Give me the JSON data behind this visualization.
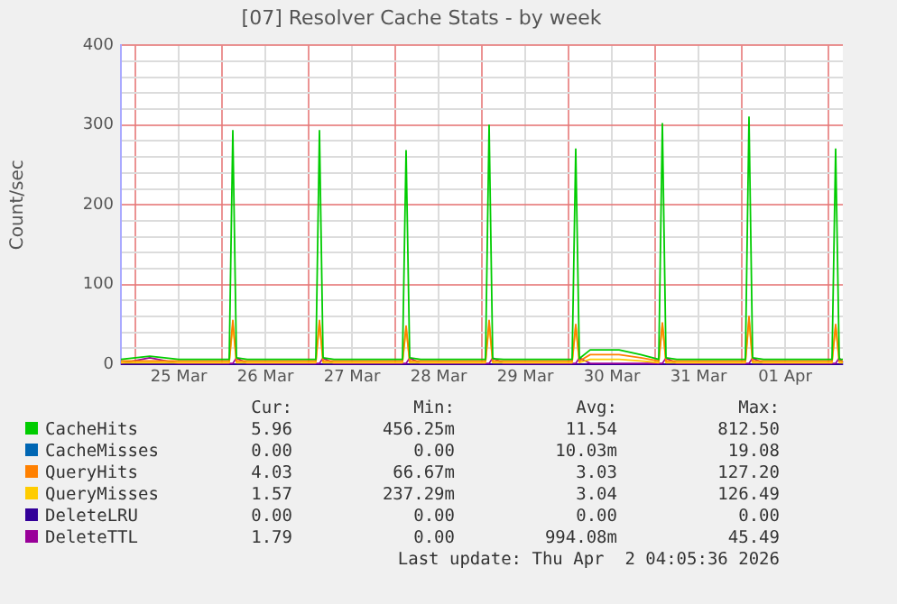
{
  "chart_data": {
    "type": "line",
    "title": "[07] Resolver Cache Stats - by week",
    "ylabel": "Count/sec",
    "x": [
      "2026-03-24T20:00",
      "2026-03-25T04:00",
      "2026-03-25T12:00",
      "2026-03-25T20:00",
      "2026-03-26T02:00",
      "2026-03-26T03:00",
      "2026-03-26T04:00",
      "2026-03-26T07:00",
      "2026-03-26T15:00",
      "2026-03-27T02:00",
      "2026-03-27T03:00",
      "2026-03-27T04:00",
      "2026-03-27T07:00",
      "2026-03-27T15:00",
      "2026-03-28T02:00",
      "2026-03-28T03:00",
      "2026-03-28T04:00",
      "2026-03-28T07:00",
      "2026-03-28T15:00",
      "2026-03-29T01:00",
      "2026-03-29T02:00",
      "2026-03-29T03:00",
      "2026-03-29T06:00",
      "2026-03-29T15:00",
      "2026-03-30T01:00",
      "2026-03-30T02:00",
      "2026-03-30T03:00",
      "2026-03-30T06:00",
      "2026-03-30T14:00",
      "2026-03-30T20:00",
      "2026-03-31T01:00",
      "2026-03-31T02:00",
      "2026-03-31T03:00",
      "2026-03-31T06:00",
      "2026-03-31T15:00",
      "2026-04-01T01:00",
      "2026-04-01T02:00",
      "2026-04-01T03:00",
      "2026-04-01T06:00",
      "2026-04-01T15:00",
      "2026-04-02T01:00",
      "2026-04-02T02:00",
      "2026-04-02T03:00",
      "2026-04-02T04:00"
    ],
    "series": [
      {
        "name": "CacheHits",
        "color": "#00cc00",
        "values": [
          6,
          10,
          6,
          6,
          6,
          293,
          8,
          6,
          6,
          6,
          293,
          8,
          6,
          6,
          6,
          268,
          8,
          6,
          6,
          6,
          300,
          7,
          6,
          6,
          6,
          270,
          7,
          18,
          18,
          12,
          6,
          302,
          8,
          6,
          6,
          6,
          310,
          8,
          6,
          6,
          6,
          270,
          6,
          6
        ]
      },
      {
        "name": "CacheMisses",
        "color": "#0066b3",
        "values": [
          null,
          null,
          null,
          null,
          null,
          null,
          null,
          null,
          null,
          null,
          null,
          null,
          null,
          null,
          null,
          null,
          null,
          null,
          null,
          null,
          null,
          null,
          null,
          null,
          null,
          null,
          null,
          null,
          null,
          null,
          null,
          null,
          null,
          null,
          null,
          null,
          null,
          null,
          null,
          null,
          null,
          null,
          null,
          null
        ]
      },
      {
        "name": "QueryHits",
        "color": "#ff8000",
        "values": [
          4,
          4,
          4,
          4,
          4,
          55,
          4,
          4,
          4,
          4,
          55,
          4,
          4,
          4,
          4,
          48,
          4,
          4,
          4,
          4,
          55,
          4,
          4,
          4,
          4,
          50,
          4,
          12,
          12,
          8,
          4,
          52,
          4,
          4,
          4,
          4,
          60,
          4,
          4,
          4,
          4,
          50,
          4,
          4
        ]
      },
      {
        "name": "QueryMisses",
        "color": "#ffcc00",
        "values": [
          2,
          2,
          2,
          2,
          2,
          50,
          2,
          2,
          2,
          2,
          52,
          2,
          2,
          2,
          2,
          45,
          2,
          2,
          2,
          2,
          50,
          2,
          2,
          2,
          2,
          48,
          2,
          6,
          6,
          4,
          2,
          50,
          2,
          2,
          2,
          2,
          55,
          2,
          2,
          2,
          2,
          48,
          2,
          2
        ]
      },
      {
        "name": "DeleteLRU",
        "color": "#330099",
        "values": [
          0,
          0,
          0,
          0,
          0,
          0,
          0,
          0,
          0,
          0,
          0,
          0,
          0,
          0,
          0,
          0,
          0,
          0,
          0,
          0,
          0,
          0,
          0,
          0,
          0,
          0,
          0,
          0,
          0,
          0,
          0,
          0,
          0,
          0,
          0,
          0,
          0,
          0,
          0,
          0,
          0,
          0,
          0,
          0
        ]
      },
      {
        "name": "DeleteTTL",
        "color": "#990099",
        "values": [
          1,
          8,
          1,
          1,
          1,
          1,
          8,
          1,
          1,
          1,
          1,
          8,
          1,
          1,
          1,
          1,
          8,
          1,
          1,
          1,
          1,
          8,
          1,
          1,
          1,
          1,
          8,
          1,
          1,
          1,
          1,
          1,
          8,
          1,
          1,
          1,
          1,
          8,
          1,
          1,
          1,
          1,
          8,
          2
        ]
      }
    ],
    "xlim": [
      "2026-03-24T20:00",
      "2026-04-02T04:00"
    ],
    "xticks": [
      {
        "value": "2026-03-25T00:00",
        "label": null
      },
      {
        "value": "2026-03-25T12:00",
        "label": "25 Mar"
      },
      {
        "value": "2026-03-26T00:00",
        "label": null
      },
      {
        "value": "2026-03-26T12:00",
        "label": "26 Mar"
      },
      {
        "value": "2026-03-27T00:00",
        "label": null
      },
      {
        "value": "2026-03-27T12:00",
        "label": "27 Mar"
      },
      {
        "value": "2026-03-28T00:00",
        "label": null
      },
      {
        "value": "2026-03-28T12:00",
        "label": "28 Mar"
      },
      {
        "value": "2026-03-29T00:00",
        "label": null
      },
      {
        "value": "2026-03-29T12:00",
        "label": "29 Mar"
      },
      {
        "value": "2026-03-30T00:00",
        "label": null
      },
      {
        "value": "2026-03-30T12:00",
        "label": "30 Mar"
      },
      {
        "value": "2026-03-31T00:00",
        "label": null
      },
      {
        "value": "2026-03-31T12:00",
        "label": "31 Mar"
      },
      {
        "value": "2026-04-01T00:00",
        "label": null
      },
      {
        "value": "2026-04-01T12:00",
        "label": "01 Apr"
      },
      {
        "value": "2026-04-02T00:00",
        "label": null
      }
    ],
    "ylim": [
      0,
      400
    ],
    "yticks": [
      0,
      {
        "value": 20,
        "label": null
      },
      {
        "value": 40,
        "label": null
      },
      {
        "value": 60,
        "label": null
      },
      {
        "value": 80,
        "label": null
      },
      100,
      {
        "value": 120,
        "label": null
      },
      {
        "value": 140,
        "label": null
      },
      {
        "value": 160,
        "label": null
      },
      {
        "value": 180,
        "label": null
      },
      200,
      {
        "value": 220,
        "label": null
      },
      {
        "value": 240,
        "label": null
      },
      {
        "value": 260,
        "label": null
      },
      {
        "value": 280,
        "label": null
      },
      300,
      {
        "value": 320,
        "label": null
      },
      {
        "value": 340,
        "label": null
      },
      {
        "value": 360,
        "label": null
      },
      {
        "value": 380,
        "label": null
      },
      400
    ],
    "grid": true,
    "legend": "bottom",
    "annotations": [
      "Cur:",
      "Min:",
      "Avg:",
      "Max:",
      "5.96",
      "456.25m",
      "11.54",
      "812.50",
      "0.00",
      "0.00",
      "10.03m",
      "19.08",
      "4.03",
      "66.67m",
      "3.03",
      "127.20",
      "1.57",
      "237.29m",
      "3.04",
      "126.49",
      "0.00",
      "0.00",
      "0.00",
      "0.00",
      "1.79",
      "0.00",
      "994.08m",
      "45.49",
      "Last update: Thu Apr  2 04:05:36 2026"
    ]
  }
}
